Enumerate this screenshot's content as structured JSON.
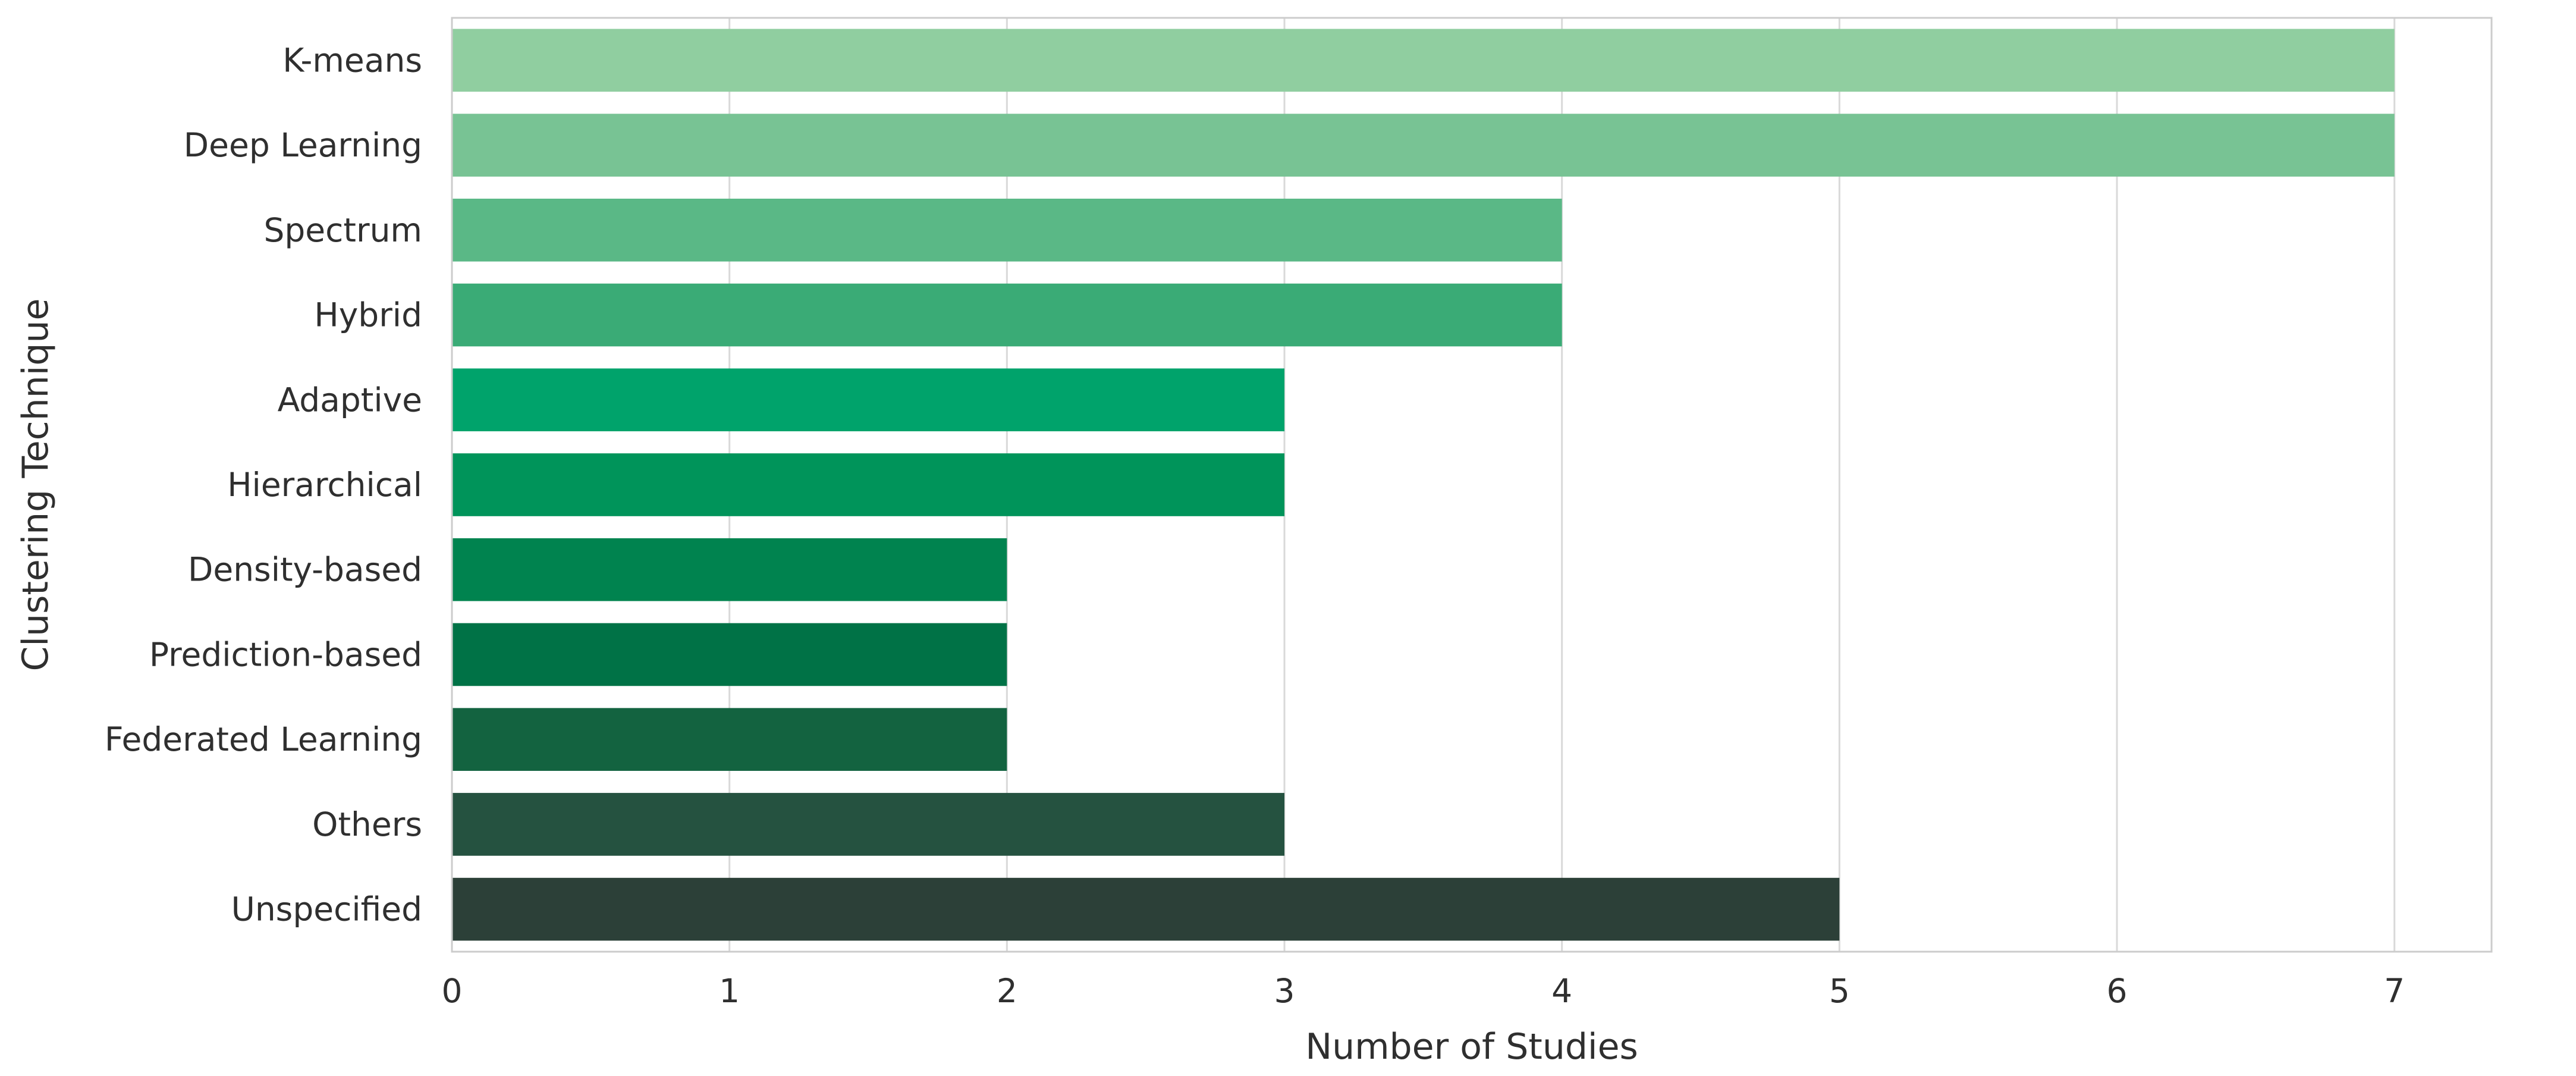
{
  "chart_data": {
    "type": "bar",
    "orientation": "horizontal",
    "categories": [
      "K-means",
      "Deep Learning",
      "Spectrum",
      "Hybrid",
      "Adaptive",
      "Hierarchical",
      "Density-based",
      "Prediction-based",
      "Federated Learning",
      "Others",
      "Unspecified"
    ],
    "values": [
      7,
      7,
      4,
      4,
      3,
      3,
      2,
      2,
      2,
      3,
      5
    ],
    "bar_colors": [
      "#90cea0",
      "#78c394",
      "#5ab886",
      "#3aab76",
      "#00a36b",
      "#00945a",
      "#00834f",
      "#007246",
      "#136340",
      "#255240",
      "#2c4038"
    ],
    "xlabel": "Number of Studies",
    "ylabel": "Clustering Technique",
    "xticks": [
      "0",
      "1",
      "2",
      "3",
      "4",
      "5",
      "6",
      "7"
    ],
    "xlim": [
      0,
      7.35
    ],
    "grid": "vertical",
    "legend": "none",
    "colors": {
      "grid": "#d9d9d9",
      "frame": "#cccccc",
      "text": "#2f2f2f"
    }
  }
}
